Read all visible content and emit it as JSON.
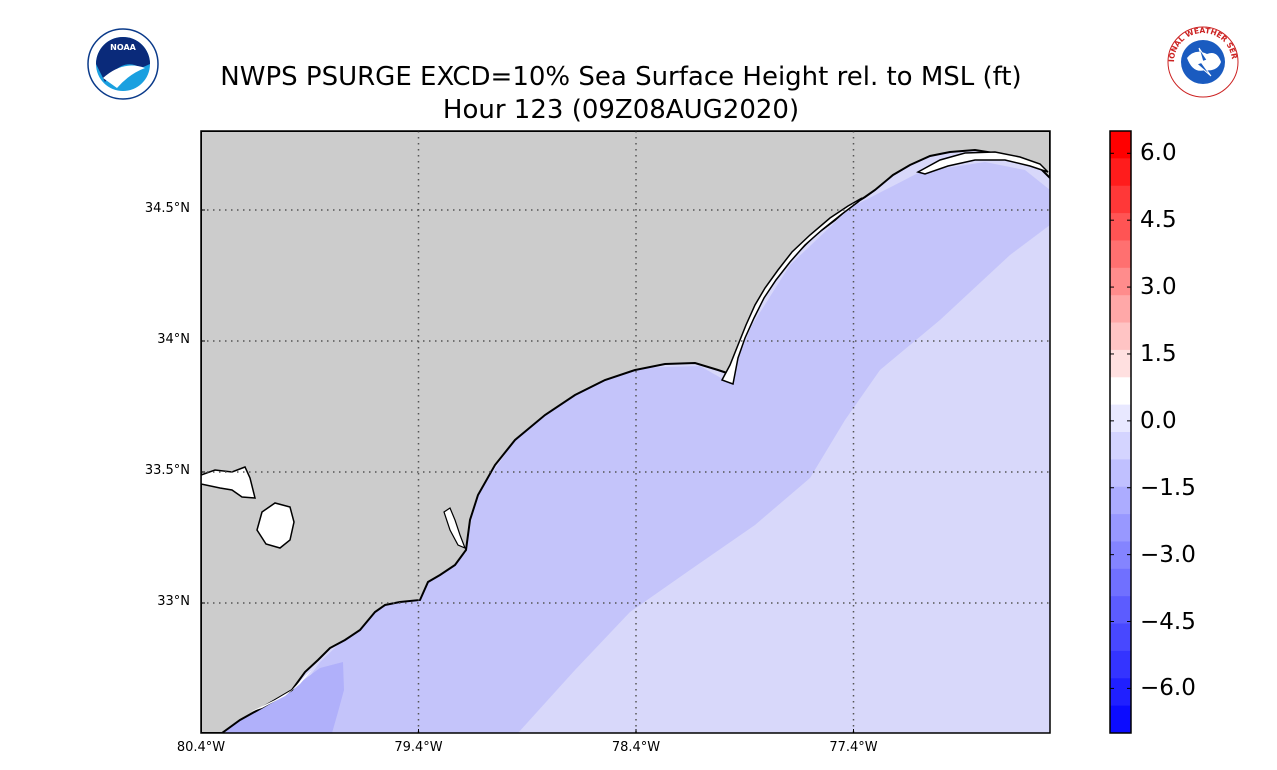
{
  "title": {
    "line1": "NWPS PSURGE EXCD=10% Sea Surface Height rel. to MSL (ft)",
    "line2": "Hour 123 (09Z08AUG2020)"
  },
  "logos": {
    "left": {
      "icon": "noaa-logo",
      "text": "NOAA"
    },
    "right": {
      "icon": "nws-logo",
      "text": "NATIONAL WEATHER SERVICE"
    }
  },
  "map": {
    "land_color": "#cccccc",
    "grid": "dotted",
    "lat_labels": [
      {
        "label": "34.5°N",
        "lat": 34.5
      },
      {
        "label": "34°N",
        "lat": 34.0
      },
      {
        "label": "33.5°N",
        "lat": 33.5
      },
      {
        "label": "33°N",
        "lat": 33.0
      }
    ],
    "lon_labels": [
      {
        "label": "80.4°W",
        "lon": -80.4
      },
      {
        "label": "79.4°W",
        "lon": -79.4
      },
      {
        "label": "78.4°W",
        "lon": -78.4
      },
      {
        "label": "77.4°W",
        "lon": -77.4
      }
    ],
    "surge_bands": [
      {
        "value_ft": -2.0,
        "color": "#d8d8fa"
      },
      {
        "value_ft": -2.5,
        "color": "#c4c4fa"
      },
      {
        "value_ft": -3.0,
        "color": "#b0b0fa"
      }
    ]
  },
  "colorbar": {
    "range_ft": [
      -7.0,
      6.5
    ],
    "tick_labels": [
      "6.0",
      "4.5",
      "3.0",
      "1.5",
      "0.0",
      "−1.5",
      "−3.0",
      "−4.5",
      "−6.0"
    ],
    "tick_values": [
      6.0,
      4.5,
      3.0,
      1.5,
      0.0,
      -1.5,
      -3.0,
      -4.5,
      -6.0
    ],
    "colors_top_to_bottom": [
      "#ff0000",
      "#ff1c1c",
      "#ff3838",
      "#ff5454",
      "#ff7070",
      "#ff8c8c",
      "#ffa8a8",
      "#ffc4c4",
      "#ffe0e0",
      "#ffffff",
      "#e8e8ff",
      "#d4d4ff",
      "#c0c0ff",
      "#acacff",
      "#9898ff",
      "#8484ff",
      "#7070ff",
      "#5c5cff",
      "#4848ff",
      "#3434ff",
      "#2020ff",
      "#0c0cff"
    ]
  }
}
